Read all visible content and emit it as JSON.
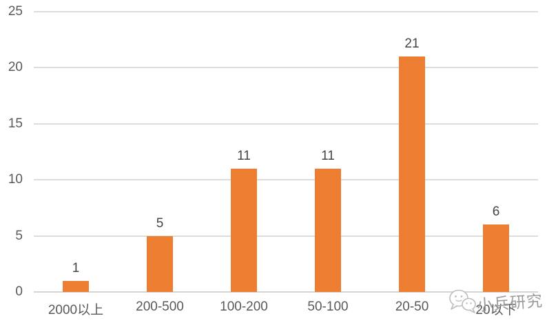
{
  "chart_data": {
    "type": "bar",
    "title": "",
    "xlabel": "",
    "ylabel": "",
    "categories": [
      "2000以上",
      "200-500",
      "100-200",
      "50-100",
      "20-50",
      "20以下"
    ],
    "values": [
      1,
      5,
      11,
      11,
      21,
      6
    ],
    "ylim": [
      0,
      25
    ],
    "yticks": [
      0,
      5,
      10,
      15,
      20,
      25
    ],
    "grid": "horizontal",
    "legend": "none",
    "colors": {
      "bar": "#ED7D31",
      "gridline": "#DCDCDC",
      "tick_label": "#595959",
      "data_label": "#444444"
    }
  },
  "watermark": {
    "text": "小兵研究",
    "icon": "chat-bubbles-logo-icon",
    "color": "#9B9B9B"
  }
}
